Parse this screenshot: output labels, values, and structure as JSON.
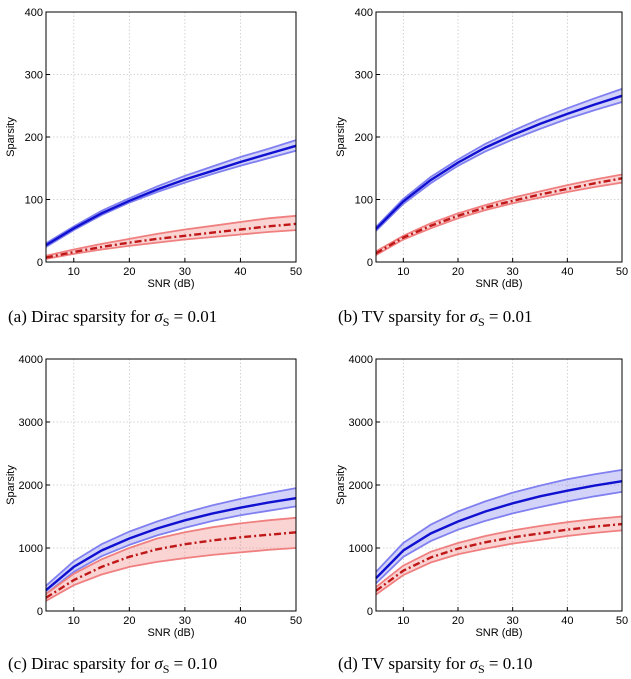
{
  "chart_data": [
    {
      "type": "area",
      "caption_prefix": "(a)  Dirac sparsity for ",
      "caption_value": "= 0.01",
      "xlabel": "SNR (dB)",
      "ylabel": "Sparsity",
      "xlim": [
        5,
        50
      ],
      "ylim": [
        0,
        400
      ],
      "xticks": [
        10,
        20,
        30,
        40,
        50
      ],
      "yticks": [
        0,
        100,
        200,
        300,
        400
      ],
      "grid": true,
      "x": [
        5,
        10,
        15,
        20,
        25,
        30,
        35,
        40,
        45,
        50
      ],
      "series": [
        {
          "color": "#1010d0",
          "band_color": "#8080f0",
          "style": "solid",
          "values": [
            27,
            54,
            78,
            98,
            116,
            132,
            146,
            160,
            173,
            186
          ],
          "upper": [
            30,
            57,
            82,
            102,
            121,
            138,
            153,
            168,
            181,
            195
          ],
          "lower": [
            24,
            51,
            75,
            95,
            112,
            127,
            141,
            154,
            166,
            178
          ]
        },
        {
          "color": "#c01818",
          "band_color": "#f08080",
          "style": "dashdot",
          "values": [
            7,
            16,
            24,
            31,
            37,
            42,
            47,
            52,
            57,
            61
          ],
          "upper": [
            10,
            20,
            29,
            37,
            45,
            52,
            58,
            64,
            70,
            74
          ],
          "lower": [
            5,
            13,
            20,
            26,
            31,
            36,
            40,
            44,
            48,
            51
          ]
        }
      ]
    },
    {
      "type": "area",
      "caption_prefix": "(b)  TV sparsity for ",
      "caption_value": "= 0.01",
      "xlabel": "SNR (dB)",
      "ylabel": "Sparsity",
      "xlim": [
        5,
        50
      ],
      "ylim": [
        0,
        400
      ],
      "xticks": [
        10,
        20,
        30,
        40,
        50
      ],
      "yticks": [
        0,
        100,
        200,
        300,
        400
      ],
      "grid": true,
      "x": [
        5,
        10,
        15,
        20,
        25,
        30,
        35,
        40,
        45,
        50
      ],
      "series": [
        {
          "color": "#1010d0",
          "band_color": "#8080f0",
          "style": "solid",
          "values": [
            53,
            97,
            131,
            159,
            183,
            203,
            221,
            237,
            252,
            266
          ],
          "upper": [
            56,
            101,
            136,
            164,
            189,
            210,
            229,
            246,
            262,
            277
          ],
          "lower": [
            50,
            93,
            126,
            154,
            177,
            196,
            213,
            229,
            243,
            256
          ]
        },
        {
          "color": "#c01818",
          "band_color": "#f08080",
          "style": "dashdot",
          "values": [
            14,
            39,
            58,
            74,
            87,
            98,
            108,
            117,
            126,
            134
          ],
          "upper": [
            17,
            42,
            62,
            78,
            91,
            103,
            113,
            123,
            132,
            140
          ],
          "lower": [
            11,
            36,
            54,
            70,
            83,
            94,
            103,
            112,
            120,
            127
          ]
        }
      ]
    },
    {
      "type": "area",
      "caption_prefix": "(c)  Dirac sparsity for ",
      "caption_value": "= 0.10",
      "xlabel": "SNR (dB)",
      "ylabel": "Sparsity",
      "xlim": [
        5,
        50
      ],
      "ylim": [
        0,
        4000
      ],
      "xticks": [
        10,
        20,
        30,
        40,
        50
      ],
      "yticks": [
        0,
        1000,
        2000,
        3000,
        4000
      ],
      "grid": true,
      "x": [
        5,
        10,
        15,
        20,
        25,
        30,
        35,
        40,
        45,
        50
      ],
      "series": [
        {
          "color": "#1010d0",
          "band_color": "#8080f0",
          "style": "solid",
          "values": [
            330,
            700,
            960,
            1150,
            1310,
            1440,
            1550,
            1640,
            1720,
            1790
          ],
          "upper": [
            400,
            790,
            1060,
            1260,
            1420,
            1560,
            1680,
            1780,
            1870,
            1950
          ],
          "lower": [
            270,
            620,
            870,
            1050,
            1200,
            1320,
            1430,
            1520,
            1590,
            1660
          ]
        },
        {
          "color": "#c01818",
          "band_color": "#f08080",
          "style": "dashdot",
          "values": [
            210,
            490,
            700,
            860,
            980,
            1060,
            1120,
            1170,
            1210,
            1250
          ],
          "upper": [
            270,
            590,
            820,
            1000,
            1150,
            1250,
            1330,
            1390,
            1440,
            1480
          ],
          "lower": [
            160,
            410,
            580,
            700,
            780,
            840,
            890,
            930,
            970,
            1000
          ]
        }
      ]
    },
    {
      "type": "area",
      "caption_prefix": "(d)  TV sparsity for ",
      "caption_value": "= 0.10",
      "xlabel": "SNR (dB)",
      "ylabel": "Sparsity",
      "xlim": [
        5,
        50
      ],
      "ylim": [
        0,
        4000
      ],
      "xticks": [
        10,
        20,
        30,
        40,
        50
      ],
      "yticks": [
        0,
        1000,
        2000,
        3000,
        4000
      ],
      "grid": true,
      "x": [
        5,
        10,
        15,
        20,
        25,
        30,
        35,
        40,
        45,
        50
      ],
      "series": [
        {
          "color": "#1010d0",
          "band_color": "#8080f0",
          "style": "solid",
          "values": [
            520,
            960,
            1230,
            1420,
            1580,
            1710,
            1820,
            1910,
            1990,
            2060
          ],
          "upper": [
            620,
            1080,
            1370,
            1580,
            1740,
            1880,
            1990,
            2090,
            2170,
            2240
          ],
          "lower": [
            440,
            860,
            1110,
            1290,
            1430,
            1550,
            1650,
            1740,
            1820,
            1890
          ]
        },
        {
          "color": "#c01818",
          "band_color": "#f08080",
          "style": "dashdot",
          "values": [
            320,
            640,
            850,
            990,
            1090,
            1170,
            1230,
            1290,
            1340,
            1380
          ],
          "upper": [
            380,
            720,
            940,
            1080,
            1190,
            1280,
            1350,
            1410,
            1460,
            1500
          ],
          "lower": [
            260,
            570,
            770,
            900,
            990,
            1070,
            1130,
            1190,
            1240,
            1280
          ]
        }
      ]
    }
  ]
}
